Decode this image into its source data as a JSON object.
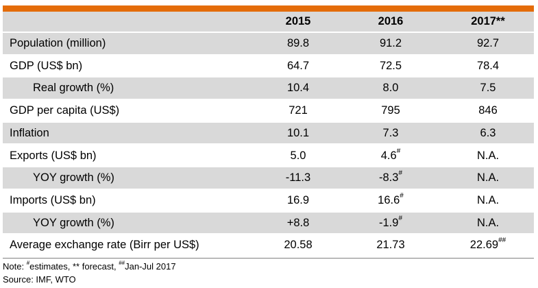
{
  "table": {
    "columns": [
      "",
      "2015",
      "2016",
      "2017**"
    ],
    "rows": [
      {
        "label": "Population (million)",
        "indent": false,
        "v": [
          "89.8",
          "91.2",
          "92.7"
        ],
        "sup": [
          "",
          "",
          ""
        ]
      },
      {
        "label": "GDP (US$ bn)",
        "indent": false,
        "v": [
          "64.7",
          "72.5",
          "78.4"
        ],
        "sup": [
          "",
          "",
          ""
        ]
      },
      {
        "label": "Real growth (%)",
        "indent": true,
        "v": [
          "10.4",
          "8.0",
          "7.5"
        ],
        "sup": [
          "",
          "",
          ""
        ]
      },
      {
        "label": "GDP per capita (US$)",
        "indent": false,
        "v": [
          "721",
          "795",
          "846"
        ],
        "sup": [
          "",
          "",
          ""
        ]
      },
      {
        "label": "Inflation",
        "indent": false,
        "v": [
          "10.1",
          "7.3",
          "6.3"
        ],
        "sup": [
          "",
          "",
          ""
        ]
      },
      {
        "label": "Exports (US$ bn)",
        "indent": false,
        "v": [
          "5.0",
          "4.6",
          "N.A."
        ],
        "sup": [
          "",
          "#",
          ""
        ]
      },
      {
        "label": "YOY growth (%)",
        "indent": true,
        "v": [
          "-11.3",
          "-8.3",
          "N.A."
        ],
        "sup": [
          "",
          "#",
          ""
        ]
      },
      {
        "label": "Imports (US$ bn)",
        "indent": false,
        "v": [
          "16.9",
          "16.6",
          "N.A."
        ],
        "sup": [
          "",
          "#",
          ""
        ]
      },
      {
        "label": "YOY growth (%)",
        "indent": true,
        "v": [
          "+8.8",
          "-1.9",
          "N.A."
        ],
        "sup": [
          "",
          "#",
          ""
        ]
      },
      {
        "label": "Average exchange rate (Birr per US$)",
        "indent": false,
        "v": [
          "20.58",
          "21.73",
          "22.69"
        ],
        "sup": [
          "",
          "",
          "##"
        ]
      }
    ]
  },
  "notes": {
    "note_prefix": "Note: ",
    "sup1": "#",
    "text1": "estimates, ",
    "text2": " ** forecast, ",
    "sup2": "##",
    "text3": "Jan-Jul 2017",
    "source": "Source: IMF, WTO"
  },
  "colors": {
    "accent_bar": "#e46c0a",
    "shade": "#d9d9d9"
  }
}
